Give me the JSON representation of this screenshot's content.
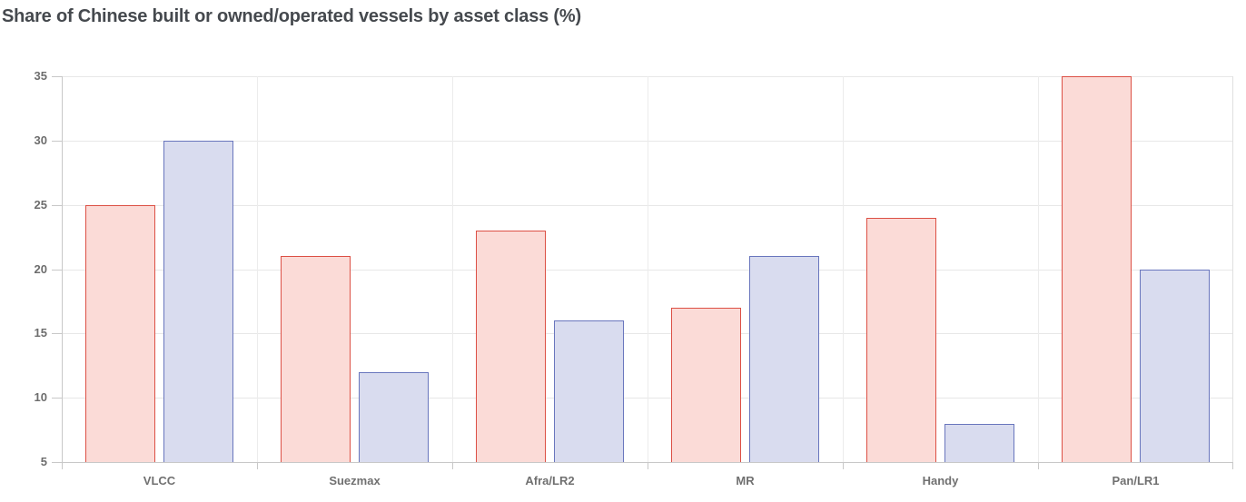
{
  "title": "Share of Chinese built or owned/operated vessels by asset class (%)",
  "colors": {
    "title_text": "#45494e",
    "tick_label_text": "#6d6d6d",
    "category_label_text": "#707070",
    "gridline": "#e7e7e7",
    "axis_line": "#c8c8c8",
    "background": "#ffffff"
  },
  "chart_data": {
    "type": "bar",
    "title": "Share of Chinese built or owned/operated vessels by asset class (%)",
    "xlabel": "",
    "ylabel": "",
    "categories": [
      "VLCC",
      "Suezmax",
      "Afra/LR2",
      "MR",
      "Handy",
      "Pan/LR1"
    ],
    "series": [
      {
        "name": "red",
        "fill": "#fbdbd7",
        "stroke": "#dc5045",
        "values": [
          25,
          21,
          23,
          17,
          24,
          35
        ]
      },
      {
        "name": "blue",
        "fill": "#d9dcef",
        "stroke": "#6976bd",
        "values": [
          30,
          12,
          16,
          21,
          8,
          20
        ]
      }
    ],
    "ylim": [
      5,
      35
    ],
    "yticks": [
      5,
      10,
      15,
      20,
      25,
      30,
      35
    ],
    "grid": true,
    "legend_position": "none"
  }
}
